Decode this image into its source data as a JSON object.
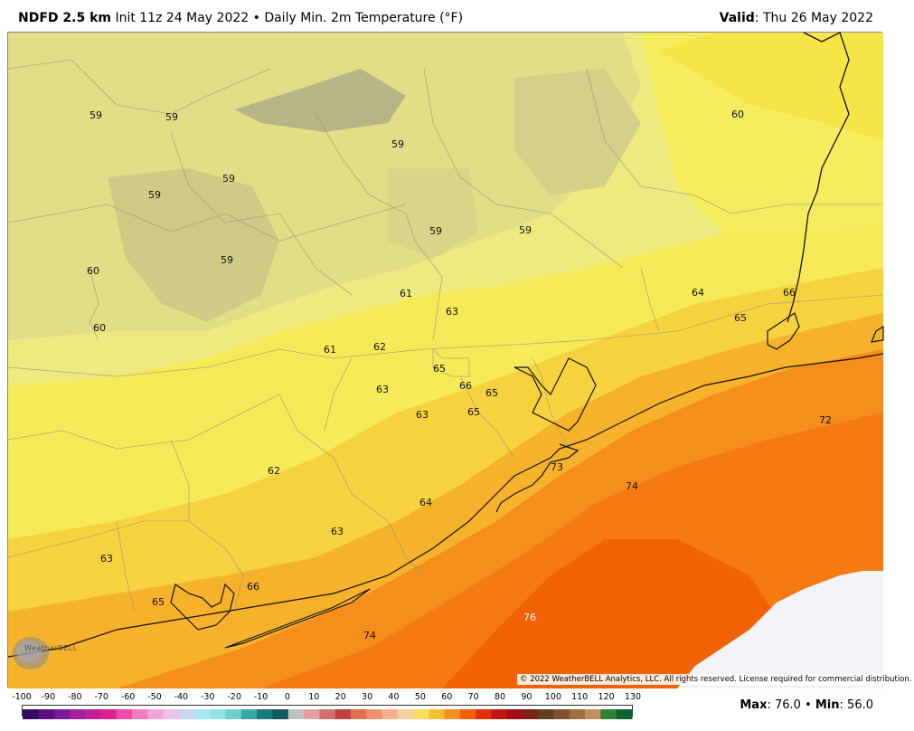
{
  "header": {
    "model": "NDFD 2.5 km",
    "description": "Init 11z 24 May 2022 • Daily Min. 2m Temperature (°F)",
    "valid_label": "Valid",
    "valid_value": ": Thu 26 May 2022"
  },
  "copyright": "© 2022 WeatherBELL Analytics, LLC. All rights reserved. License required for commercial distribution.",
  "logo_text": "WeatherBELL",
  "colorbar": {
    "ticks": [
      "-100",
      "-90",
      "-80",
      "-70",
      "-60",
      "-50",
      "-40",
      "-30",
      "-20",
      "-10",
      "0",
      "10",
      "20",
      "30",
      "40",
      "50",
      "60",
      "70",
      "80",
      "90",
      "100",
      "110",
      "120",
      "130"
    ]
  },
  "stats": {
    "max_label": "Max",
    "max_value": ": 76.0 • ",
    "min_label": "Min",
    "min_value": ": 56.0"
  },
  "map_values": [
    {
      "v": "59"
    },
    {
      "v": "59"
    },
    {
      "v": "59"
    },
    {
      "v": "59"
    },
    {
      "v": "59"
    },
    {
      "v": "59"
    },
    {
      "v": "59"
    },
    {
      "v": "59"
    },
    {
      "v": "60"
    },
    {
      "v": "60"
    },
    {
      "v": "60"
    },
    {
      "v": "61"
    },
    {
      "v": "61"
    },
    {
      "v": "62"
    },
    {
      "v": "62"
    },
    {
      "v": "63"
    },
    {
      "v": "63"
    },
    {
      "v": "63"
    },
    {
      "v": "63"
    },
    {
      "v": "63"
    },
    {
      "v": "64"
    },
    {
      "v": "64"
    },
    {
      "v": "65"
    },
    {
      "v": "65"
    },
    {
      "v": "65"
    },
    {
      "v": "65"
    },
    {
      "v": "65"
    },
    {
      "v": "66"
    },
    {
      "v": "66"
    },
    {
      "v": "66"
    },
    {
      "v": "72"
    },
    {
      "v": "73"
    },
    {
      "v": "74"
    },
    {
      "v": "74"
    },
    {
      "v": "76"
    }
  ]
}
